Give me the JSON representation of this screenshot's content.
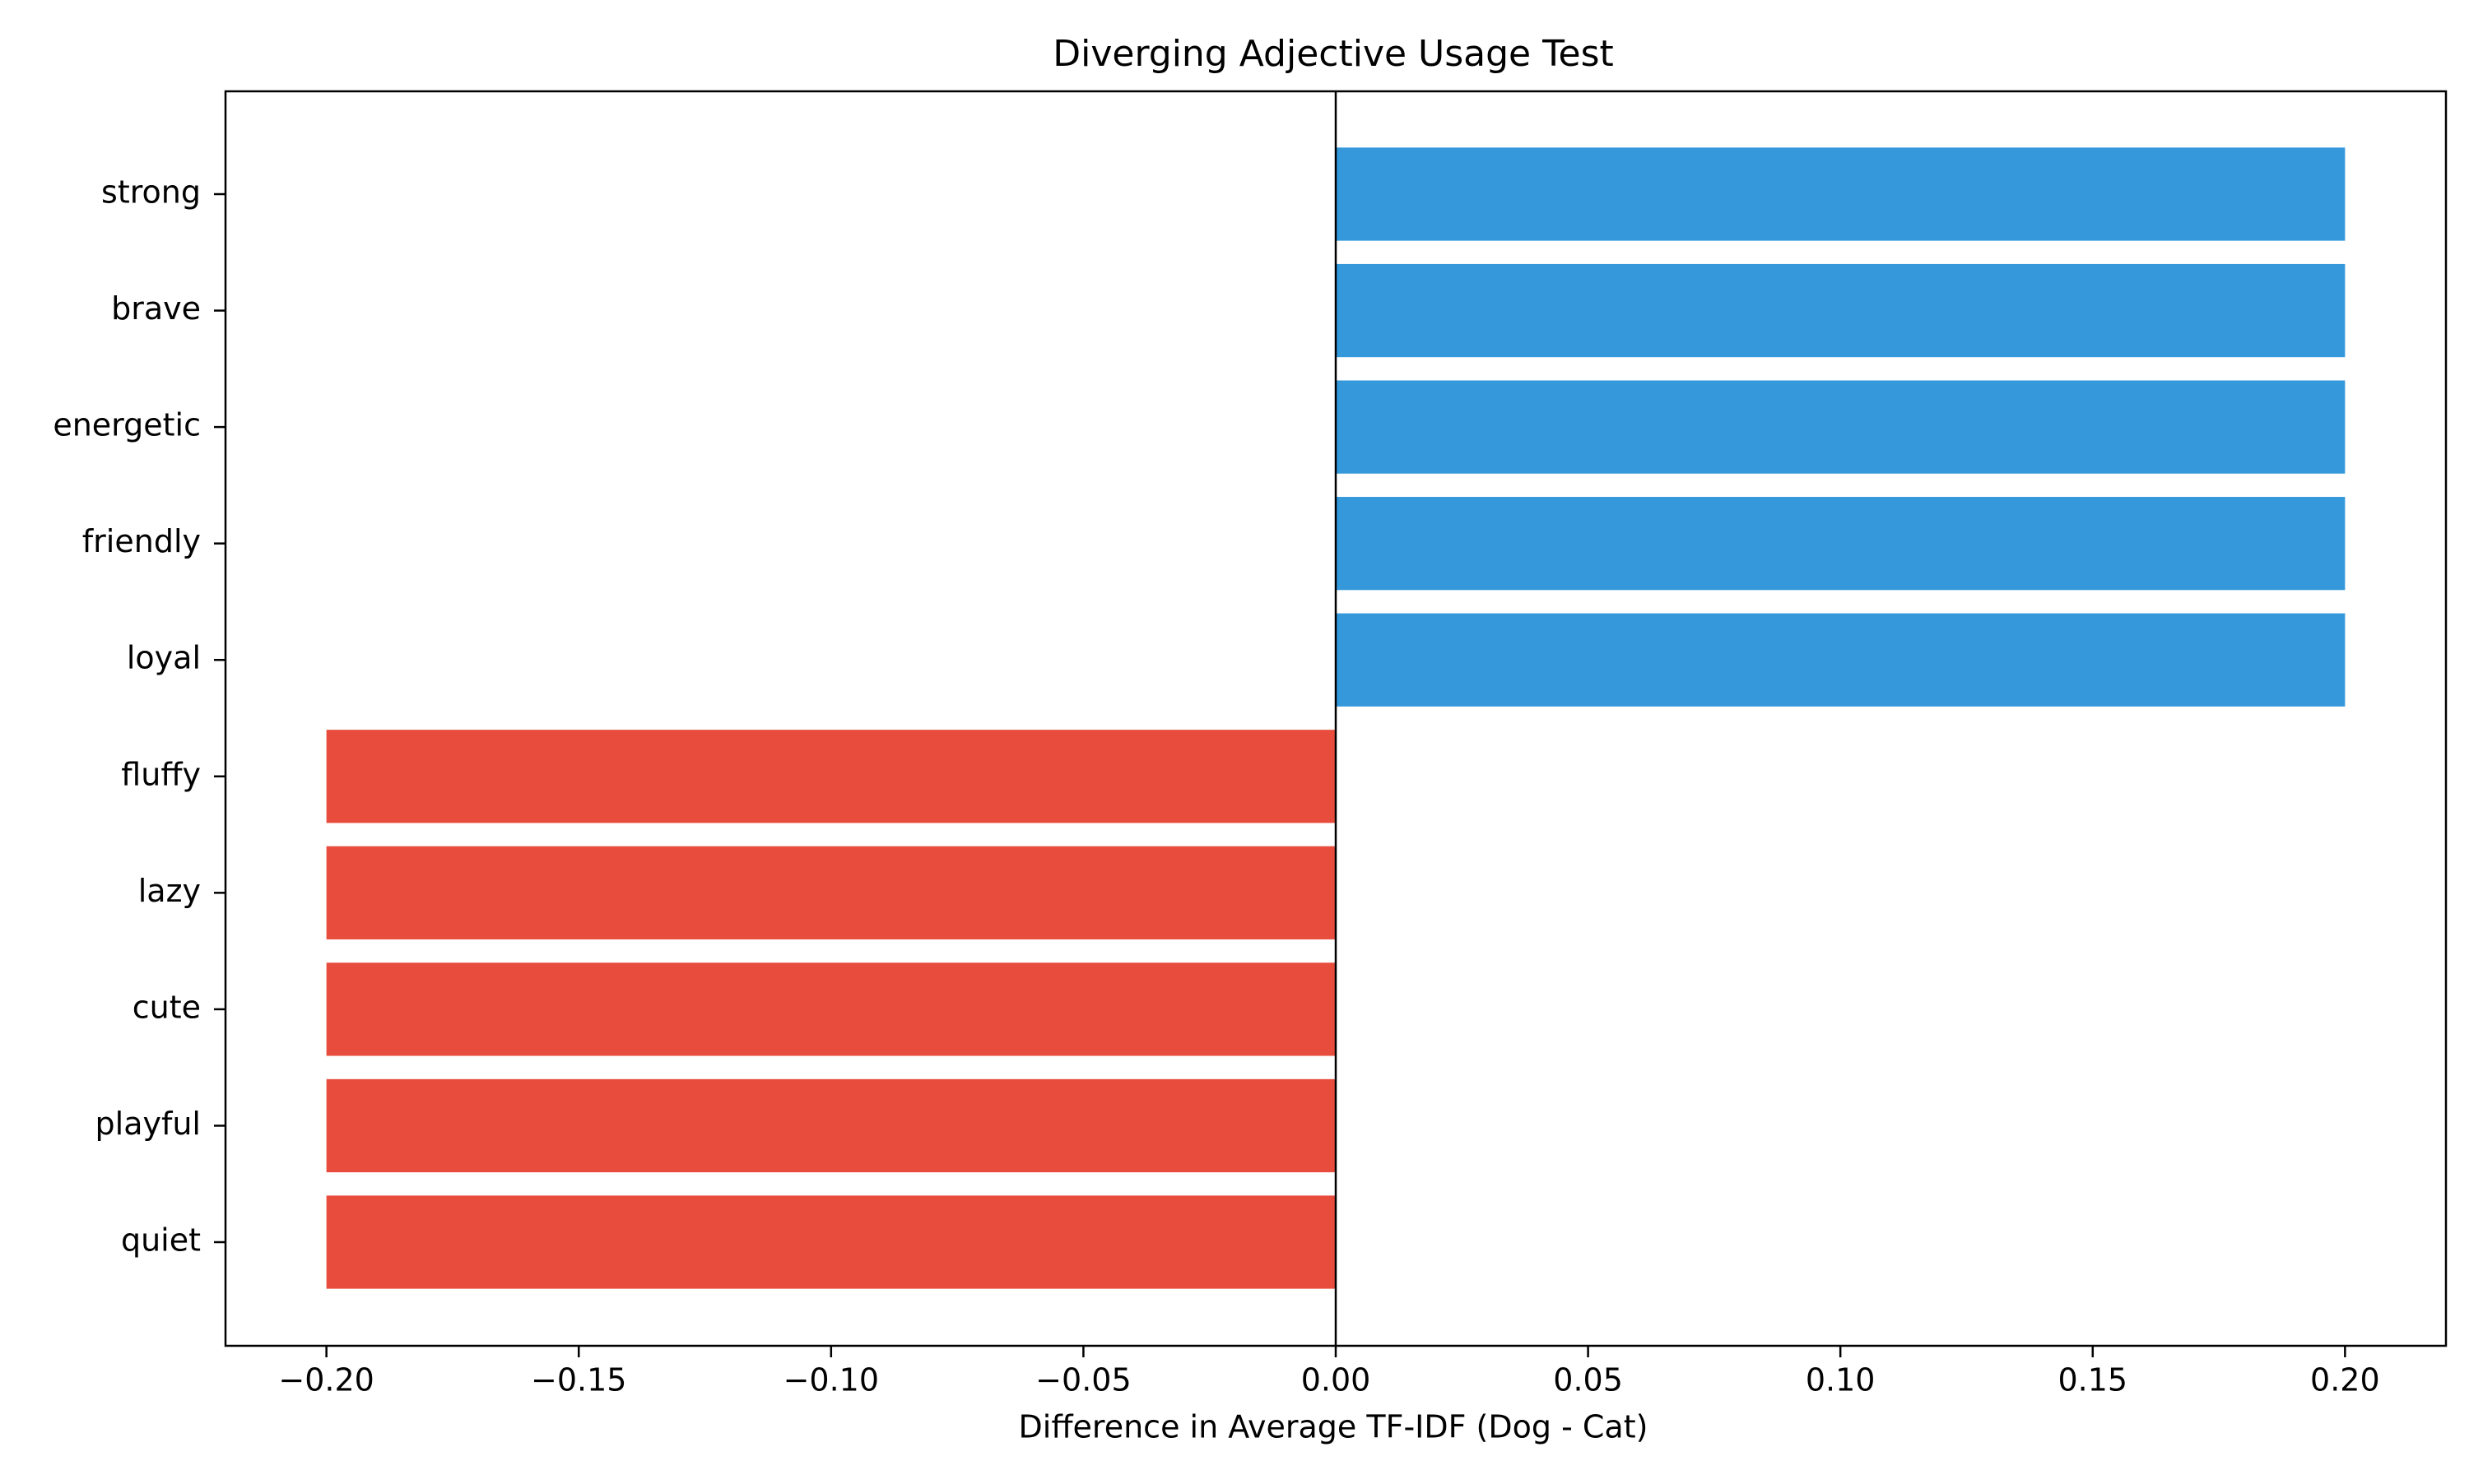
{
  "chart_data": {
    "type": "bar",
    "orientation": "horizontal",
    "title": "Diverging Adjective Usage Test",
    "xlabel": "Difference in Average TF-IDF (Dog - Cat)",
    "ylabel": "",
    "xlim": [
      -0.22,
      0.22
    ],
    "xticks": [
      -0.2,
      -0.15,
      -0.1,
      -0.05,
      0.0,
      0.05,
      0.1,
      0.15,
      0.2
    ],
    "xtick_labels": [
      "−0.20",
      "−0.15",
      "−0.10",
      "−0.05",
      "0.00",
      "0.05",
      "0.10",
      "0.15",
      "0.20"
    ],
    "categories": [
      "strong",
      "brave",
      "energetic",
      "friendly",
      "loyal",
      "fluffy",
      "lazy",
      "cute",
      "playful",
      "quiet"
    ],
    "values": [
      0.2,
      0.2,
      0.2,
      0.2,
      0.2,
      -0.2,
      -0.2,
      -0.2,
      -0.2,
      -0.2
    ],
    "colors": {
      "positive": "#3498db",
      "negative": "#e74c3c",
      "zero_line": "#000000"
    },
    "grid": false,
    "legend": "none"
  }
}
